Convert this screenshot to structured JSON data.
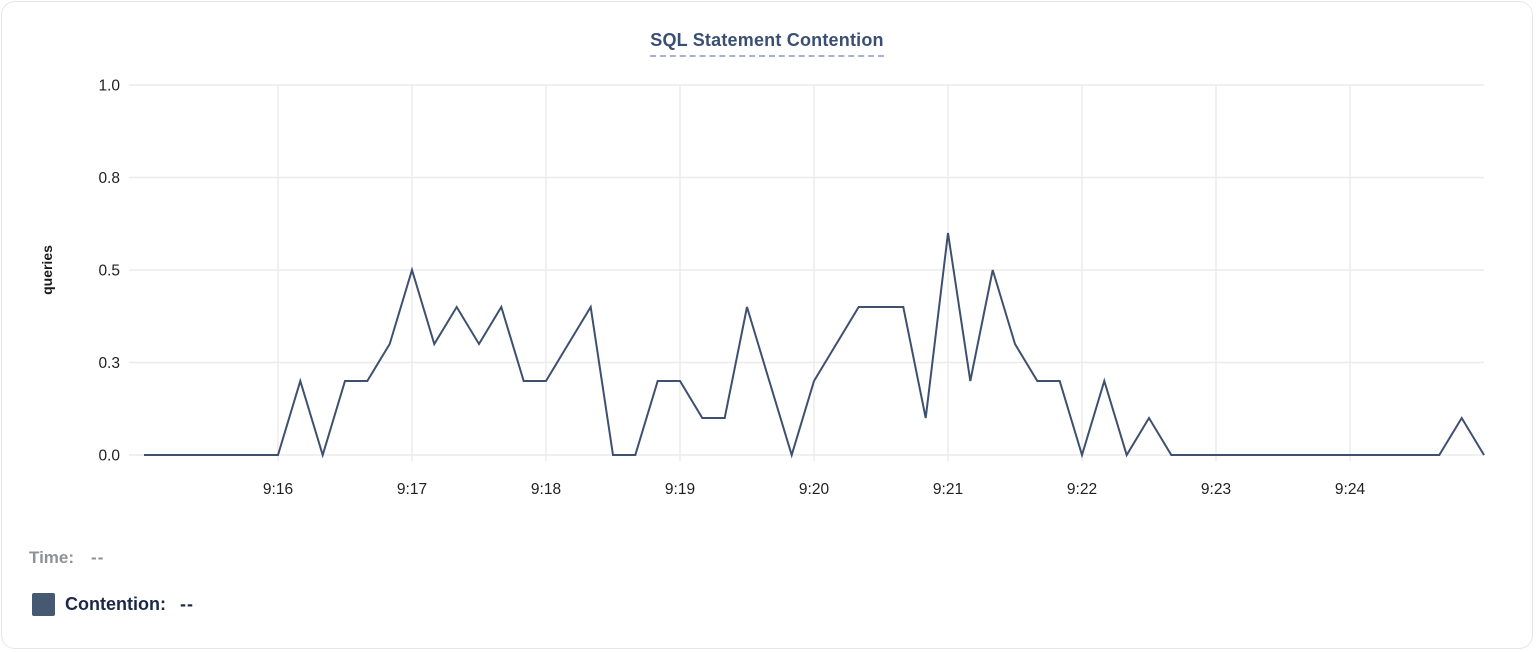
{
  "chart": {
    "title": "SQL Statement Contention",
    "ylabel": "queries"
  },
  "legend": {
    "time_label": "Time:",
    "time_value": "--",
    "series_label": "Contention:",
    "series_value": "--",
    "swatch_color": "#475872"
  },
  "colors": {
    "line": "#3e506f",
    "grid": "#ebebeb",
    "axis_text": "#1f1f1f",
    "title": "#3a4f73",
    "title_underline": "#a9afd4",
    "card_border": "#e7e7e7",
    "time_label": "#8e9196",
    "series_label": "#1b2947"
  },
  "chart_data": {
    "type": "line",
    "title": "SQL Statement Contention",
    "xlabel": "",
    "ylabel": "queries",
    "ylim": [
      0,
      1.0
    ],
    "grid": true,
    "x_start": "9:15:00",
    "x_end": "9:25:00",
    "interval_seconds": 10,
    "y_ticks": [
      {
        "value": 0.0,
        "label": "0.0"
      },
      {
        "value": 0.25,
        "label": "0.3"
      },
      {
        "value": 0.5,
        "label": "0.5"
      },
      {
        "value": 0.75,
        "label": "0.8"
      },
      {
        "value": 1.0,
        "label": "1.0"
      }
    ],
    "x_ticks": [
      {
        "index": 6,
        "label": "9:16"
      },
      {
        "index": 12,
        "label": "9:17"
      },
      {
        "index": 18,
        "label": "9:18"
      },
      {
        "index": 24,
        "label": "9:19"
      },
      {
        "index": 30,
        "label": "9:20"
      },
      {
        "index": 36,
        "label": "9:21"
      },
      {
        "index": 42,
        "label": "9:22"
      },
      {
        "index": 48,
        "label": "9:23"
      },
      {
        "index": 54,
        "label": "9:24"
      }
    ],
    "series": [
      {
        "name": "Contention",
        "color": "#3e506f",
        "values": [
          0,
          0,
          0,
          0,
          0,
          0,
          0,
          0.2,
          0,
          0.2,
          0.2,
          0.3,
          0.5,
          0.3,
          0.4,
          0.3,
          0.4,
          0.2,
          0.2,
          0.3,
          0.4,
          0,
          0,
          0.2,
          0.2,
          0.1,
          0.1,
          0.4,
          0.2,
          0,
          0.2,
          0.3,
          0.4,
          0.4,
          0.4,
          0.1,
          0.6,
          0.2,
          0.5,
          0.3,
          0.2,
          0.2,
          0,
          0.2,
          0,
          0.1,
          0,
          0,
          0,
          0,
          0,
          0,
          0,
          0,
          0,
          0,
          0,
          0,
          0,
          0.1,
          0
        ]
      }
    ],
    "legend_position": "bottom-left"
  }
}
